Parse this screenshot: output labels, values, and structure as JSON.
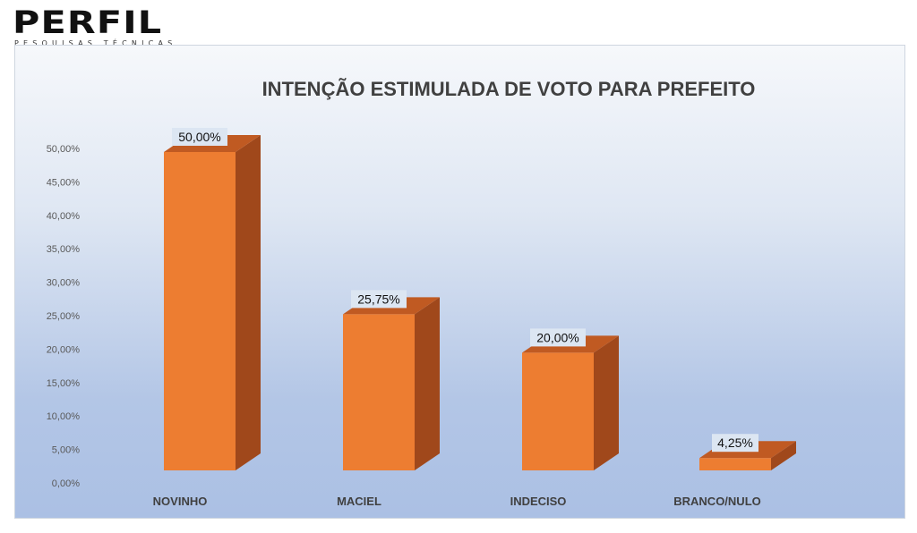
{
  "logo": {
    "name": "PERFIL",
    "tagline": "PESQUISAS TÉCNICAS"
  },
  "chart_data": {
    "type": "bar",
    "title": "INTENÇÃO ESTIMULADA DE VOTO PARA PREFEITO",
    "xlabel": "",
    "ylabel": "",
    "categories": [
      "NOVINHO",
      "MACIEL",
      "INDECISO",
      "BRANCO/NULO"
    ],
    "values": [
      50.0,
      25.75,
      20.0,
      4.25
    ],
    "data_labels": [
      "50,00%",
      "25,75%",
      "20,00%",
      "4,25%"
    ],
    "ylim": [
      0,
      50
    ],
    "y_ticks": [
      "0,00%",
      "5,00%",
      "10,00%",
      "15,00%",
      "20,00%",
      "25,00%",
      "30,00%",
      "35,00%",
      "40,00%",
      "45,00%",
      "50,00%"
    ],
    "grid": false,
    "style": "3d-column",
    "colors": {
      "bar_front": "#ed7d31",
      "bar_side": "#a0481b",
      "bar_top": "#c05a22"
    }
  }
}
